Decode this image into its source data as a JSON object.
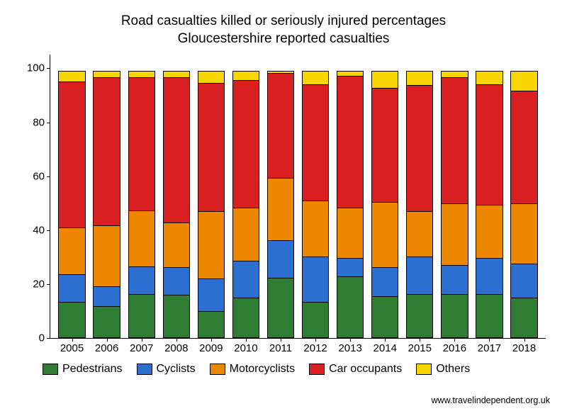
{
  "chart": {
    "title_line1": "Road casualties killed or seriously injured percentages",
    "title_line2": "Gloucestershire reported casualties",
    "title_fontsize": 19,
    "axis_fontsize": 15,
    "legend_fontsize": 16,
    "background_color": "#ffffff",
    "axis_color": "#000000",
    "ylim": [
      0,
      105
    ],
    "yticks": [
      0,
      20,
      40,
      60,
      80,
      100
    ],
    "categories": [
      "2005",
      "2006",
      "2007",
      "2008",
      "2009",
      "2010",
      "2011",
      "2012",
      "2013",
      "2014",
      "2015",
      "2016",
      "2017",
      "2018"
    ],
    "series": [
      {
        "name": "Pedestrians",
        "color": "#2f7d32",
        "values": [
          13.5,
          12,
          16.5,
          16,
          10,
          15,
          22.5,
          13.5,
          23,
          15.5,
          16.5,
          16.5,
          16.5,
          15
        ]
      },
      {
        "name": "Cyclists",
        "color": "#2b6fd1",
        "values": [
          10.5,
          7.5,
          10.5,
          10.5,
          12.5,
          14,
          14,
          17,
          7,
          11,
          14,
          11,
          13.5,
          13
        ]
      },
      {
        "name": "Motorcyclists",
        "color": "#ee8700",
        "values": [
          17.5,
          23,
          21,
          17,
          25,
          20,
          23.5,
          21,
          19,
          24.5,
          17,
          23,
          20,
          22.5
        ]
      },
      {
        "name": "Car occupants",
        "color": "#d91f1f",
        "values": [
          54.5,
          55,
          49.5,
          54,
          48,
          47.5,
          39,
          43.5,
          49,
          42.5,
          47,
          47,
          45,
          42
        ]
      },
      {
        "name": "Others",
        "color": "#f7d500",
        "values": [
          4,
          2.5,
          2.5,
          2.5,
          4.5,
          3.5,
          1,
          5,
          2,
          6.5,
          5.5,
          2.5,
          5,
          7.5
        ]
      }
    ],
    "bar_border_color": "#000000",
    "attribution": "www.travelindependent.org.uk"
  }
}
